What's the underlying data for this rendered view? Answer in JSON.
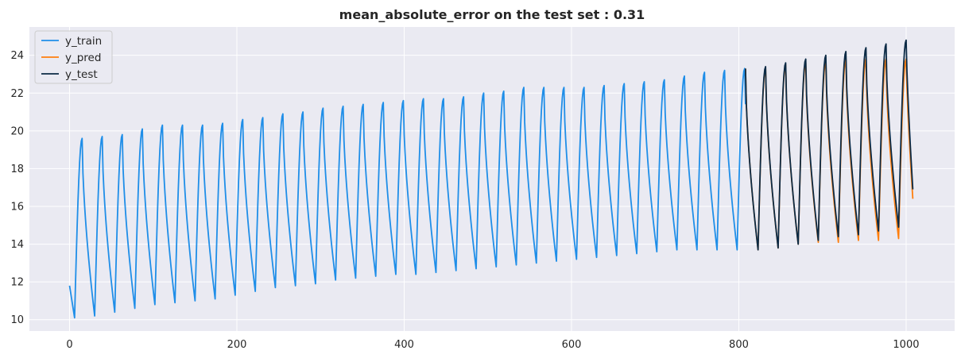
{
  "chart_data": {
    "type": "line",
    "title": "mean_absolute_error on the test set : 0.31",
    "xlabel": "",
    "ylabel": "",
    "xlim": [
      -48,
      1058
    ],
    "ylim": [
      9.4,
      25.5
    ],
    "x_ticks": [
      0,
      200,
      400,
      600,
      800,
      1000
    ],
    "y_ticks": [
      10,
      12,
      14,
      16,
      18,
      20,
      22,
      24
    ],
    "grid": true,
    "legend_position": "top-left",
    "period": 24,
    "series": [
      {
        "name": "y_train",
        "color": "#1f8ee8",
        "x_range": [
          0,
          808
        ],
        "cycle_peaks": [
          19.6,
          19.7,
          19.8,
          20.1,
          20.3,
          20.3,
          20.3,
          20.4,
          20.6,
          20.7,
          20.9,
          21.0,
          21.2,
          21.3,
          21.4,
          21.5,
          21.6,
          21.7,
          21.7,
          21.8,
          22.0,
          22.1,
          22.3,
          22.3,
          22.3,
          22.3,
          22.4,
          22.5,
          22.6,
          22.7,
          22.9,
          23.1,
          23.2,
          23.3
        ],
        "cycle_troughs": [
          10.1,
          10.2,
          10.4,
          10.6,
          10.8,
          10.9,
          11.0,
          11.1,
          11.3,
          11.5,
          11.7,
          11.8,
          11.9,
          12.1,
          12.2,
          12.3,
          12.4,
          12.4,
          12.5,
          12.6,
          12.7,
          12.8,
          12.9,
          13.0,
          13.1,
          13.2,
          13.3,
          13.4,
          13.5,
          13.6,
          13.7,
          13.7,
          13.7,
          13.7
        ],
        "start_value": 11.8
      },
      {
        "name": "y_pred",
        "color": "#ff7f0e",
        "x_range": [
          808,
          1008
        ],
        "cycle_peaks": [
          23.3,
          23.3,
          23.5,
          23.6,
          23.7,
          23.8,
          23.8,
          23.8,
          23.8
        ],
        "cycle_troughs": [
          13.7,
          13.8,
          14.0,
          14.1,
          14.1,
          14.2,
          14.2,
          14.3
        ],
        "start_value": 23.3,
        "end_value": 16.4
      },
      {
        "name": "y_test",
        "color": "#0b2a45",
        "x_range": [
          808,
          1008
        ],
        "cycle_peaks": [
          23.3,
          23.4,
          23.6,
          23.8,
          24.0,
          24.2,
          24.4,
          24.6,
          24.8
        ],
        "cycle_troughs": [
          13.7,
          13.8,
          14.0,
          14.2,
          14.4,
          14.5,
          14.7,
          14.9
        ],
        "start_value": 23.3,
        "end_value": 16.9
      }
    ]
  }
}
